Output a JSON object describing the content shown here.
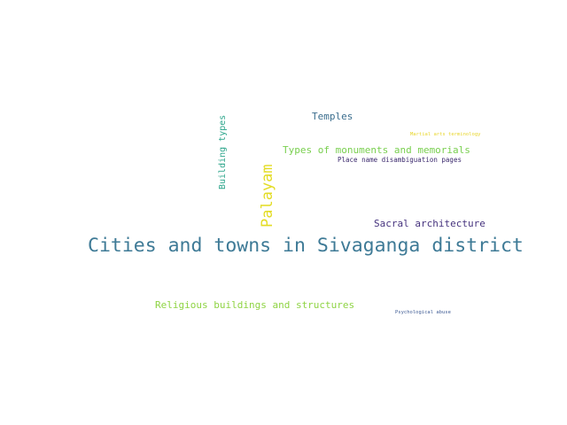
{
  "words": [
    {
      "text": "Cities and towns in Sivaganga district",
      "color": "#3e7a96"
    },
    {
      "text": "Religious buildings and structures",
      "color": "#8fd444"
    },
    {
      "text": "Types of monuments and memorials",
      "color": "#79cf4f"
    },
    {
      "text": "Sacral architecture",
      "color": "#46337e"
    },
    {
      "text": "Temples",
      "color": "#3b6e8e"
    },
    {
      "text": "Place name disambiguation pages",
      "color": "#3c2a6e"
    },
    {
      "text": "Psychological abuse",
      "color": "#3d5a93"
    },
    {
      "text": "Martial arts terminology",
      "color": "#e8d52a"
    },
    {
      "text": "Palayam",
      "color": "#e3dc24"
    },
    {
      "text": "Building types",
      "color": "#2ca58b"
    }
  ]
}
